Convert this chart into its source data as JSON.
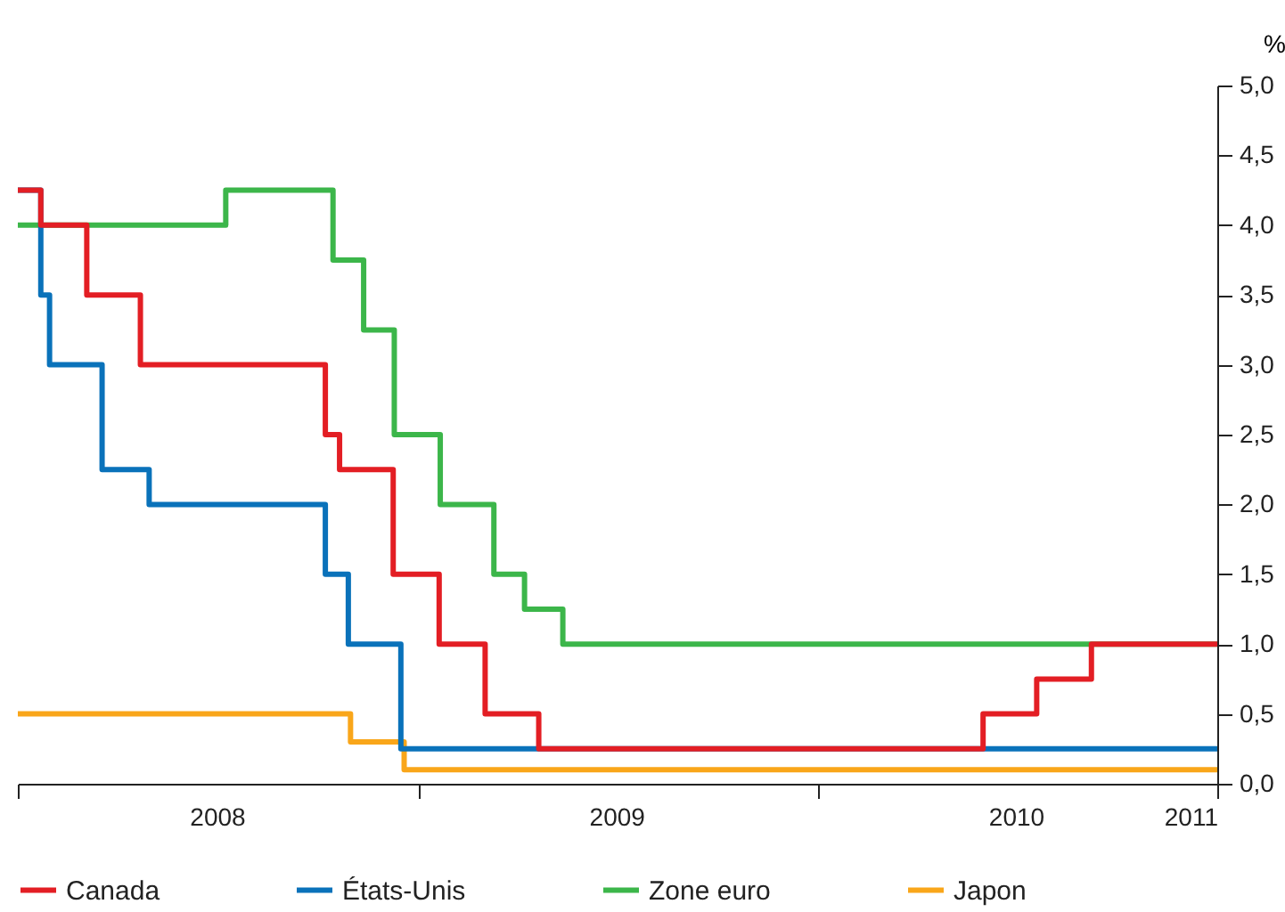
{
  "chart_data": {
    "type": "step",
    "ylabel": "%",
    "legend": "bottom",
    "line_style": "solid",
    "marker": "none",
    "grid": false,
    "xlim": [
      "2008-01-01",
      "2011-01-01"
    ],
    "xticks": [
      {
        "value": "2008-01-01",
        "label": null
      },
      {
        "value": "2008-07-01",
        "label": "2008"
      },
      {
        "value": "2009-01-01",
        "label": null
      },
      {
        "value": "2009-07-01",
        "label": "2009"
      },
      {
        "value": "2010-01-01",
        "label": null
      },
      {
        "value": "2010-07-01",
        "label": "2010"
      },
      {
        "value": "2011-01-01",
        "label": "2011"
      }
    ],
    "ylim": [
      0,
      5
    ],
    "yticks": [
      {
        "value": 0,
        "label": "0,0"
      },
      {
        "value": 0.5,
        "label": "0,5"
      },
      {
        "value": 1,
        "label": "1,0"
      },
      {
        "value": 1.5,
        "label": "1,5"
      },
      {
        "value": 2,
        "label": "2,0"
      },
      {
        "value": 2.5,
        "label": "2,5"
      },
      {
        "value": 3,
        "label": "3,0"
      },
      {
        "value": 3.5,
        "label": "3,5"
      },
      {
        "value": 4,
        "label": "4,0"
      },
      {
        "value": 4.5,
        "label": "4,5"
      },
      {
        "value": 5,
        "label": "5,0"
      }
    ],
    "series": [
      {
        "name": "Canada",
        "color": "#e31e24",
        "x": [
          "2008-01-01",
          "2008-01-22",
          "2008-03-04",
          "2008-04-22",
          "2008-10-08",
          "2008-10-21",
          "2008-12-09",
          "2009-01-20",
          "2009-03-03",
          "2009-04-21",
          "2010-06-01",
          "2010-07-20",
          "2010-09-08",
          "2011-01-01"
        ],
        "values": [
          4.25,
          4.0,
          3.5,
          3.0,
          2.5,
          2.25,
          1.5,
          1.0,
          0.5,
          0.25,
          0.5,
          0.75,
          1.0,
          1.0
        ]
      },
      {
        "name": "États-Unis",
        "color": "#0a72ba",
        "x": [
          "2008-01-01",
          "2008-01-22",
          "2008-01-30",
          "2008-03-18",
          "2008-04-30",
          "2008-10-08",
          "2008-10-29",
          "2008-12-16",
          "2011-01-01"
        ],
        "values": [
          4.25,
          3.5,
          3.0,
          2.25,
          2.0,
          1.5,
          1.0,
          0.25,
          0.25
        ]
      },
      {
        "name": "Zone euro",
        "color": "#3cb64a",
        "x": [
          "2008-01-01",
          "2008-07-09",
          "2008-10-15",
          "2008-11-12",
          "2008-12-10",
          "2009-01-21",
          "2009-03-11",
          "2009-04-08",
          "2009-05-13",
          "2011-01-01"
        ],
        "values": [
          4.0,
          4.25,
          3.75,
          3.25,
          2.5,
          2.0,
          1.5,
          1.25,
          1.0,
          1.0
        ]
      },
      {
        "name": "Japon",
        "color": "#f9a61a",
        "x": [
          "2008-01-01",
          "2008-10-31",
          "2008-12-19",
          "2011-01-01"
        ],
        "values": [
          0.5,
          0.3,
          0.1,
          0.1
        ]
      }
    ]
  }
}
